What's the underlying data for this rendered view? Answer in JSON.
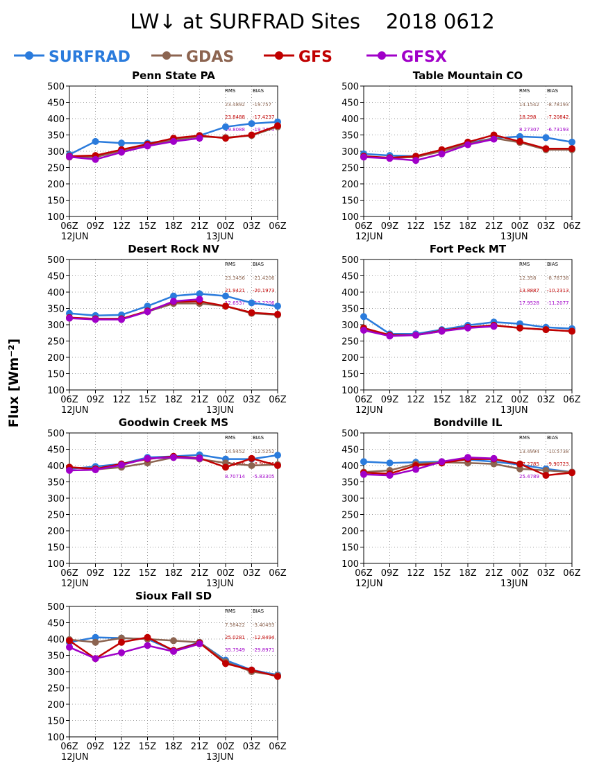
{
  "title": "LW↓ at SURFRAD Sites    2018 0612",
  "ylabel": "Flux [Wm⁻²]",
  "legend": [
    {
      "name": "SURFRAD",
      "color": "#2a7bdc"
    },
    {
      "name": "GDAS",
      "color": "#8c6450"
    },
    {
      "name": "GFS",
      "color": "#c00000"
    },
    {
      "name": "GFSX",
      "color": "#a000c8"
    }
  ],
  "stats_headers": {
    "rms": "RMS",
    "bias": "BIAS"
  },
  "chart_data": [
    {
      "type": "line",
      "title": "Penn State PA",
      "x": [
        "06Z",
        "09Z",
        "12Z",
        "15Z",
        "18Z",
        "21Z",
        "00Z",
        "03Z",
        "06Z"
      ],
      "date_labels": [
        "12JUN",
        "13JUN"
      ],
      "ylim": [
        100,
        500
      ],
      "yticks": [
        100,
        150,
        200,
        250,
        300,
        350,
        400,
        450,
        500
      ],
      "grid": true,
      "series": [
        {
          "name": "SURFRAD",
          "color": "#2a7bdc",
          "values": [
            290,
            330,
            325,
            325,
            335,
            348,
            375,
            385,
            390
          ]
        },
        {
          "name": "GDAS",
          "color": "#8c6450",
          "values": [
            282,
            282,
            302,
            318,
            335,
            345,
            342,
            348,
            375
          ]
        },
        {
          "name": "GFS",
          "color": "#c00000",
          "values": [
            285,
            287,
            305,
            322,
            340,
            348,
            340,
            350,
            378
          ]
        },
        {
          "name": "GFSX",
          "color": "#a000c8",
          "values": [
            283,
            275,
            297,
            316,
            330,
            340,
            null,
            null,
            null
          ]
        }
      ],
      "stats": [
        {
          "model": "GDAS",
          "color": "#8c6450",
          "rms": "23.4892",
          "bias": "-19.757"
        },
        {
          "model": "GFS",
          "color": "#c00000",
          "rms": "23.8488",
          "bias": "-17.4237"
        },
        {
          "model": "GFSX",
          "color": "#a000c8",
          "rms": "19.8088",
          "bias": "-19.7475"
        }
      ]
    },
    {
      "type": "line",
      "title": "Table Mountain CO",
      "x": [
        "06Z",
        "09Z",
        "12Z",
        "15Z",
        "18Z",
        "21Z",
        "00Z",
        "03Z",
        "06Z"
      ],
      "date_labels": [
        "12JUN",
        "13JUN"
      ],
      "ylim": [
        100,
        500
      ],
      "yticks": [
        100,
        150,
        200,
        250,
        300,
        350,
        400,
        450,
        500
      ],
      "grid": true,
      "series": [
        {
          "name": "SURFRAD",
          "color": "#2a7bdc",
          "values": [
            292,
            287,
            285,
            302,
            325,
            340,
            345,
            342,
            328
          ]
        },
        {
          "name": "GDAS",
          "color": "#8c6450",
          "values": [
            283,
            280,
            282,
            300,
            322,
            340,
            327,
            305,
            305
          ]
        },
        {
          "name": "GFS",
          "color": "#c00000",
          "values": [
            285,
            280,
            285,
            305,
            328,
            350,
            330,
            308,
            308
          ]
        },
        {
          "name": "GFSX",
          "color": "#a000c8",
          "values": [
            282,
            278,
            272,
            292,
            320,
            337,
            null,
            null,
            null
          ]
        }
      ],
      "stats": [
        {
          "model": "GDAS",
          "color": "#8c6450",
          "rms": "14.1542",
          "bias": "-8.78193"
        },
        {
          "model": "GFS",
          "color": "#c00000",
          "rms": "18.298",
          "bias": "-7.20842"
        },
        {
          "model": "GFSX",
          "color": "#a000c8",
          "rms": "8.27307",
          "bias": "-6.73193"
        }
      ]
    },
    {
      "type": "line",
      "title": "Desert Rock NV",
      "x": [
        "06Z",
        "09Z",
        "12Z",
        "15Z",
        "18Z",
        "21Z",
        "00Z",
        "03Z",
        "06Z"
      ],
      "date_labels": [
        "12JUN",
        "13JUN"
      ],
      "ylim": [
        100,
        500
      ],
      "yticks": [
        100,
        150,
        200,
        250,
        300,
        350,
        400,
        450,
        500
      ],
      "grid": true,
      "series": [
        {
          "name": "SURFRAD",
          "color": "#2a7bdc",
          "values": [
            335,
            328,
            330,
            357,
            388,
            395,
            388,
            367,
            357
          ]
        },
        {
          "name": "GDAS",
          "color": "#8c6450",
          "values": [
            320,
            318,
            318,
            340,
            365,
            365,
            357,
            335,
            330
          ]
        },
        {
          "name": "GFS",
          "color": "#c00000",
          "values": [
            322,
            318,
            318,
            342,
            370,
            372,
            357,
            337,
            332
          ]
        },
        {
          "name": "GFSX",
          "color": "#a000c8",
          "values": [
            320,
            316,
            316,
            340,
            372,
            378,
            null,
            null,
            null
          ]
        }
      ],
      "stats": [
        {
          "model": "GDAS",
          "color": "#8c6450",
          "rms": "23.3456",
          "bias": "-21.4206"
        },
        {
          "model": "GFS",
          "color": "#c00000",
          "rms": "21.9421",
          "bias": "-20.1973"
        },
        {
          "model": "GFSX",
          "color": "#a000c8",
          "rms": "12.6537",
          "bias": "-12.2206"
        }
      ]
    },
    {
      "type": "line",
      "title": "Fort Peck MT",
      "x": [
        "06Z",
        "09Z",
        "12Z",
        "15Z",
        "18Z",
        "21Z",
        "00Z",
        "03Z",
        "06Z"
      ],
      "date_labels": [
        "12JUN",
        "13JUN"
      ],
      "ylim": [
        100,
        500
      ],
      "yticks": [
        100,
        150,
        200,
        250,
        300,
        350,
        400,
        450,
        500
      ],
      "grid": true,
      "series": [
        {
          "name": "SURFRAD",
          "color": "#2a7bdc",
          "values": [
            325,
            272,
            272,
            285,
            298,
            308,
            303,
            292,
            288
          ]
        },
        {
          "name": "GDAS",
          "color": "#8c6450",
          "values": [
            288,
            268,
            268,
            280,
            292,
            298,
            290,
            285,
            280
          ]
        },
        {
          "name": "GFS",
          "color": "#c00000",
          "values": [
            290,
            268,
            268,
            282,
            292,
            298,
            290,
            285,
            280
          ]
        },
        {
          "name": "GFSX",
          "color": "#a000c8",
          "values": [
            283,
            265,
            268,
            280,
            290,
            295,
            null,
            null,
            null
          ]
        }
      ],
      "stats": [
        {
          "model": "GDAS",
          "color": "#8c6450",
          "rms": "12.358",
          "bias": "-8.78738"
        },
        {
          "model": "GFS",
          "color": "#c00000",
          "rms": "13.8887",
          "bias": "-10.2313"
        },
        {
          "model": "GFSX",
          "color": "#a000c8",
          "rms": "17.9528",
          "bias": "-11.2077"
        }
      ]
    },
    {
      "type": "line",
      "title": "Goodwin Creek MS",
      "x": [
        "06Z",
        "09Z",
        "12Z",
        "15Z",
        "18Z",
        "21Z",
        "00Z",
        "03Z",
        "06Z"
      ],
      "date_labels": [
        "12JUN",
        "13JUN"
      ],
      "ylim": [
        100,
        500
      ],
      "yticks": [
        100,
        150,
        200,
        250,
        300,
        350,
        400,
        450,
        500
      ],
      "grid": true,
      "series": [
        {
          "name": "SURFRAD",
          "color": "#2a7bdc",
          "values": [
            390,
            397,
            405,
            425,
            428,
            433,
            420,
            420,
            432
          ]
        },
        {
          "name": "GDAS",
          "color": "#8c6450",
          "values": [
            395,
            388,
            395,
            408,
            425,
            420,
            408,
            400,
            403
          ]
        },
        {
          "name": "GFS",
          "color": "#c00000",
          "values": [
            395,
            390,
            405,
            420,
            428,
            423,
            395,
            422,
            400
          ]
        },
        {
          "name": "GFSX",
          "color": "#a000c8",
          "values": [
            385,
            387,
            402,
            422,
            425,
            422,
            null,
            null,
            null
          ]
        }
      ],
      "stats": [
        {
          "model": "GDAS",
          "color": "#8c6450",
          "rms": "14.9452",
          "bias": "-12.5252"
        },
        {
          "model": "GFS",
          "color": "#c00000",
          "rms": "15.1149",
          "bias": "-8.50125"
        },
        {
          "model": "GFSX",
          "color": "#a000c8",
          "rms": "8.70714",
          "bias": "-5.83305"
        }
      ]
    },
    {
      "type": "line",
      "title": "Bondville IL",
      "x": [
        "06Z",
        "09Z",
        "12Z",
        "15Z",
        "18Z",
        "21Z",
        "00Z",
        "03Z",
        "06Z"
      ],
      "date_labels": [
        "12JUN",
        "13JUN"
      ],
      "ylim": [
        100,
        500
      ],
      "yticks": [
        100,
        150,
        200,
        250,
        300,
        350,
        400,
        450,
        500
      ],
      "grid": true,
      "series": [
        {
          "name": "SURFRAD",
          "color": "#2a7bdc",
          "values": [
            412,
            408,
            410,
            412,
            418,
            412,
            403,
            390,
            380
          ]
        },
        {
          "name": "GDAS",
          "color": "#8c6450",
          "values": [
            380,
            385,
            405,
            410,
            408,
            405,
            390,
            385,
            380
          ]
        },
        {
          "name": "GFS",
          "color": "#c00000",
          "values": [
            378,
            375,
            400,
            408,
            420,
            420,
            405,
            370,
            378
          ]
        },
        {
          "name": "GFSX",
          "color": "#a000c8",
          "values": [
            373,
            370,
            388,
            412,
            425,
            422,
            null,
            null,
            null
          ]
        }
      ],
      "stats": [
        {
          "model": "GDAS",
          "color": "#8c6450",
          "rms": "13.4994",
          "bias": "-10.5738"
        },
        {
          "model": "GFS",
          "color": "#c00000",
          "rms": "17.2785",
          "bias": "-9.90723"
        },
        {
          "model": "GFSX",
          "color": "#a000c8",
          "rms": "25.4789",
          "bias": "-"
        }
      ]
    },
    {
      "type": "line",
      "title": "Sioux Fall SD",
      "x": [
        "06Z",
        "09Z",
        "12Z",
        "15Z",
        "18Z",
        "21Z",
        "00Z",
        "03Z",
        "06Z"
      ],
      "date_labels": [
        "12JUN",
        "13JUN"
      ],
      "ylim": [
        100,
        500
      ],
      "yticks": [
        100,
        150,
        200,
        250,
        300,
        350,
        400,
        450,
        500
      ],
      "grid": true,
      "series": [
        {
          "name": "SURFRAD",
          "color": "#2a7bdc",
          "values": [
            390,
            405,
            403,
            400,
            365,
            390,
            335,
            305,
            290
          ]
        },
        {
          "name": "GDAS",
          "color": "#8c6450",
          "values": [
            398,
            390,
            403,
            400,
            395,
            390,
            330,
            300,
            288
          ]
        },
        {
          "name": "GFS",
          "color": "#c00000",
          "values": [
            395,
            340,
            390,
            405,
            365,
            388,
            325,
            305,
            285
          ]
        },
        {
          "name": "GFSX",
          "color": "#a000c8",
          "values": [
            375,
            340,
            358,
            380,
            362,
            385,
            null,
            null,
            null
          ]
        }
      ],
      "stats": [
        {
          "model": "GDAS",
          "color": "#8c6450",
          "rms": "7.58422",
          "bias": "-3.40493"
        },
        {
          "model": "GFS",
          "color": "#c00000",
          "rms": "25.0281",
          "bias": "-12.8494"
        },
        {
          "model": "GFSX",
          "color": "#a000c8",
          "rms": "35.7549",
          "bias": "-29.8971"
        }
      ]
    }
  ]
}
